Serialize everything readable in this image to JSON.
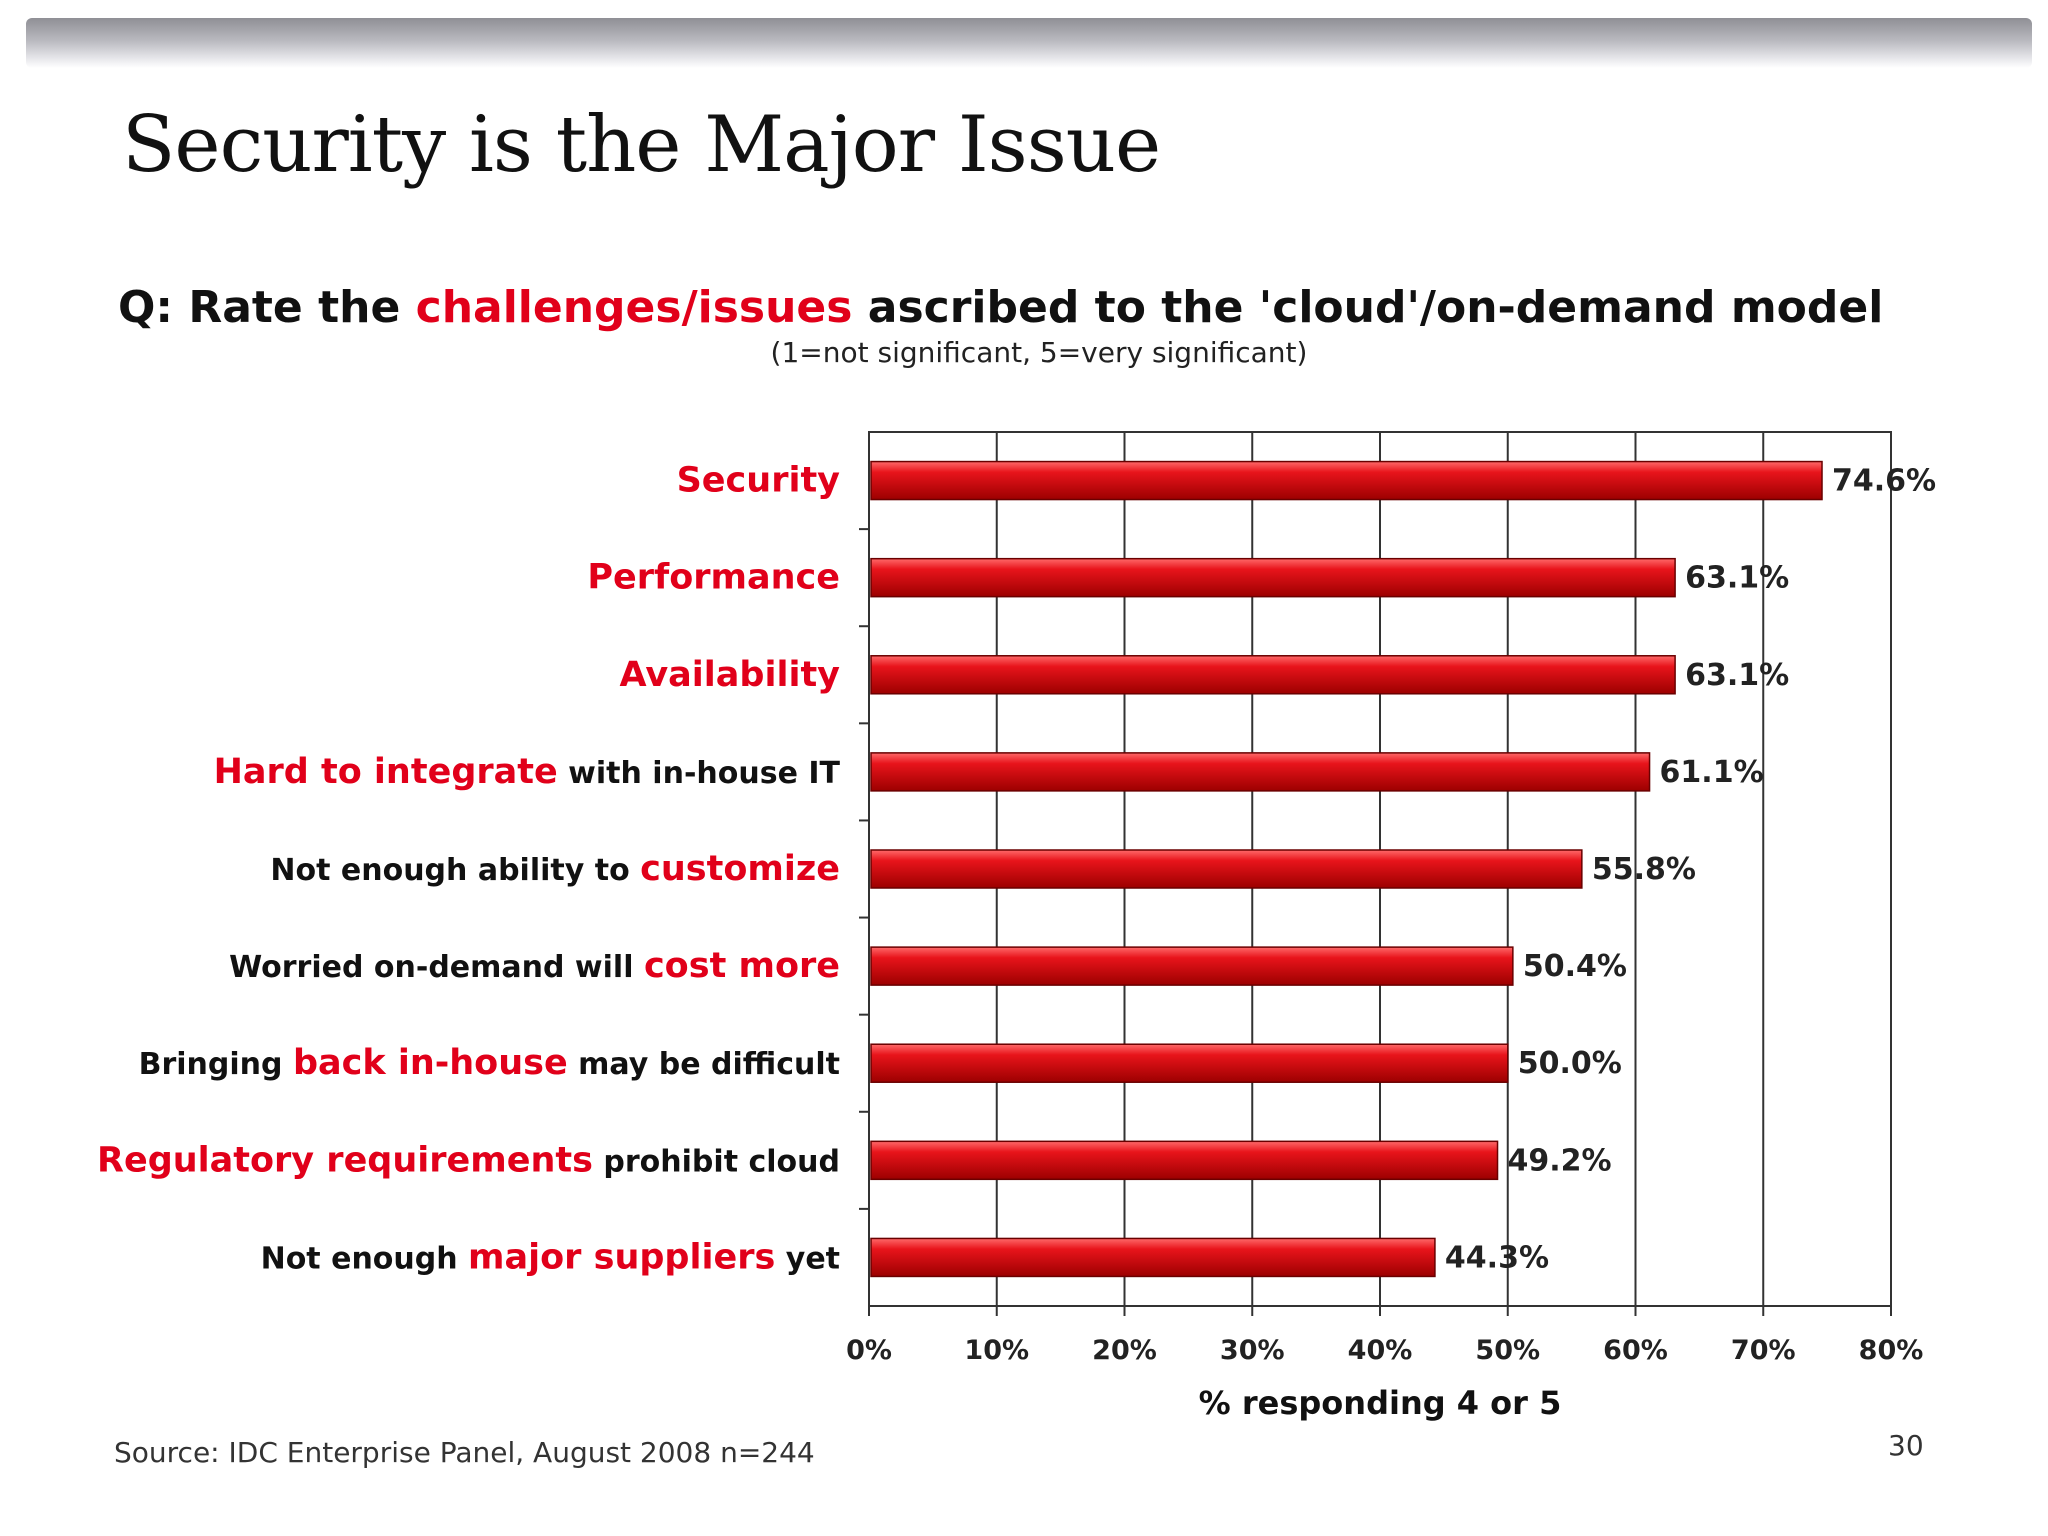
{
  "slide": {
    "title": "Security is the Major Issue",
    "question_prefix": "Q: Rate the ",
    "question_highlight": "challenges/issues",
    "question_suffix": " ascribed to the 'cloud'/on-demand model",
    "question_subtitle": "(1=not significant, 5=very significant)",
    "source": "Source: IDC Enterprise Panel, August 2008  n=244",
    "page_number": "30"
  },
  "colors": {
    "bar": "#e8141b",
    "bar_highlight": "#ff6a6a",
    "bar_dark": "#9c0000",
    "highlight_text": "#e1001a",
    "text": "#111111",
    "grid": "#333333"
  },
  "chart_data": {
    "type": "bar",
    "orientation": "horizontal",
    "categories": [
      "Security",
      "Performance",
      "Availability",
      "Hard to integrate with in-house IT",
      "Not enough ability to customize",
      "Worried on-demand will cost more",
      "Bringing back in-house may be difficult",
      "Regulatory requirements prohibit cloud",
      "Not enough major suppliers yet"
    ],
    "category_labels": [
      [
        {
          "t": "Security",
          "h": true
        }
      ],
      [
        {
          "t": "Performance",
          "h": true
        }
      ],
      [
        {
          "t": "Availability",
          "h": true
        }
      ],
      [
        {
          "t": "Hard to integrate",
          "h": true
        },
        {
          "t": " with in-house IT",
          "h": false
        }
      ],
      [
        {
          "t": "Not enough ability to ",
          "h": false
        },
        {
          "t": "customize",
          "h": true
        }
      ],
      [
        {
          "t": "Worried on-demand will ",
          "h": false
        },
        {
          "t": "cost more",
          "h": true
        }
      ],
      [
        {
          "t": "Bringing ",
          "h": false
        },
        {
          "t": "back in-house",
          "h": true
        },
        {
          "t": " may be difficult",
          "h": false
        }
      ],
      [
        {
          "t": "Regulatory requirements",
          "h": true
        },
        {
          "t": " prohibit cloud",
          "h": false
        }
      ],
      [
        {
          "t": "Not enough ",
          "h": false
        },
        {
          "t": "major suppliers",
          "h": true
        },
        {
          "t": " yet",
          "h": false
        }
      ]
    ],
    "values": [
      74.6,
      63.1,
      63.1,
      61.1,
      55.8,
      50.4,
      50.0,
      49.2,
      44.3
    ],
    "value_labels": [
      "74.6%",
      "63.1%",
      "63.1%",
      "61.1%",
      "55.8%",
      "50.4%",
      "50.0%",
      "49.2%",
      "44.3%"
    ],
    "xlim": [
      0,
      80
    ],
    "xticks": [
      0,
      10,
      20,
      30,
      40,
      50,
      60,
      70,
      80
    ],
    "xtick_labels": [
      "0%",
      "10%",
      "20%",
      "30%",
      "40%",
      "50%",
      "60%",
      "70%",
      "80%"
    ],
    "xlabel": "% responding 4 or 5",
    "ylabel": "",
    "grid": true,
    "legend": "none"
  }
}
